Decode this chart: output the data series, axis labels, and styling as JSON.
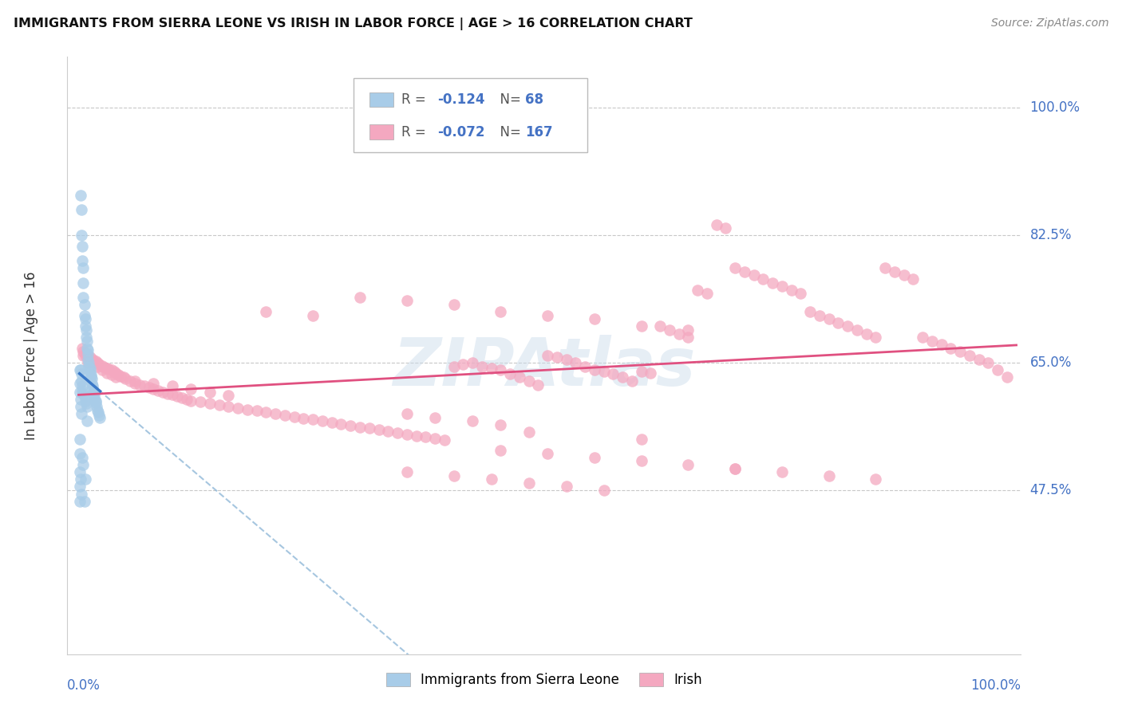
{
  "title": "IMMIGRANTS FROM SIERRA LEONE VS IRISH IN LABOR FORCE | AGE > 16 CORRELATION CHART",
  "source": "Source: ZipAtlas.com",
  "ylabel": "In Labor Force | Age > 16",
  "y_ticks": [
    0.475,
    0.65,
    0.825,
    1.0
  ],
  "y_tick_labels": [
    "47.5%",
    "65.0%",
    "82.5%",
    "100.0%"
  ],
  "legend_blue_R": "-0.124",
  "legend_blue_N": "68",
  "legend_pink_R": "-0.072",
  "legend_pink_N": "167",
  "blue_color": "#a8cce8",
  "pink_color": "#f4a8c0",
  "blue_line_color": "#3a78c8",
  "pink_line_color": "#e05080",
  "dashed_line_color": "#90b8d8",
  "watermark": "ZIPAtlas",
  "blue_scatter_x": [
    0.002,
    0.003,
    0.003,
    0.004,
    0.004,
    0.005,
    0.005,
    0.005,
    0.006,
    0.006,
    0.007,
    0.007,
    0.008,
    0.008,
    0.009,
    0.009,
    0.01,
    0.01,
    0.01,
    0.011,
    0.011,
    0.012,
    0.012,
    0.013,
    0.013,
    0.014,
    0.014,
    0.015,
    0.015,
    0.016,
    0.016,
    0.017,
    0.017,
    0.018,
    0.018,
    0.019,
    0.02,
    0.021,
    0.022,
    0.023,
    0.002,
    0.003,
    0.003,
    0.004,
    0.004,
    0.005,
    0.006,
    0.007,
    0.008,
    0.009,
    0.001,
    0.001,
    0.001,
    0.002,
    0.002,
    0.003,
    0.001,
    0.001,
    0.001,
    0.001,
    0.001,
    0.002,
    0.003,
    0.004,
    0.005,
    0.006,
    0.007,
    0.009
  ],
  "blue_scatter_y": [
    0.88,
    0.86,
    0.825,
    0.81,
    0.79,
    0.78,
    0.76,
    0.74,
    0.73,
    0.715,
    0.71,
    0.7,
    0.695,
    0.685,
    0.68,
    0.67,
    0.668,
    0.662,
    0.655,
    0.65,
    0.645,
    0.642,
    0.638,
    0.634,
    0.63,
    0.628,
    0.622,
    0.618,
    0.615,
    0.61,
    0.608,
    0.605,
    0.6,
    0.598,
    0.595,
    0.59,
    0.585,
    0.582,
    0.578,
    0.575,
    0.64,
    0.635,
    0.625,
    0.618,
    0.612,
    0.608,
    0.604,
    0.598,
    0.594,
    0.59,
    0.64,
    0.622,
    0.61,
    0.6,
    0.59,
    0.58,
    0.545,
    0.525,
    0.5,
    0.48,
    0.46,
    0.49,
    0.47,
    0.52,
    0.51,
    0.46,
    0.49,
    0.57
  ],
  "pink_scatter_x": [
    0.004,
    0.005,
    0.007,
    0.008,
    0.01,
    0.012,
    0.015,
    0.018,
    0.02,
    0.022,
    0.025,
    0.028,
    0.03,
    0.032,
    0.035,
    0.038,
    0.04,
    0.042,
    0.045,
    0.048,
    0.05,
    0.055,
    0.06,
    0.065,
    0.07,
    0.075,
    0.08,
    0.085,
    0.09,
    0.095,
    0.1,
    0.105,
    0.11,
    0.115,
    0.12,
    0.13,
    0.14,
    0.15,
    0.16,
    0.17,
    0.18,
    0.19,
    0.2,
    0.21,
    0.22,
    0.23,
    0.24,
    0.25,
    0.26,
    0.27,
    0.28,
    0.29,
    0.3,
    0.31,
    0.32,
    0.33,
    0.34,
    0.35,
    0.36,
    0.37,
    0.38,
    0.39,
    0.4,
    0.41,
    0.42,
    0.43,
    0.44,
    0.45,
    0.46,
    0.47,
    0.48,
    0.49,
    0.5,
    0.51,
    0.52,
    0.53,
    0.54,
    0.55,
    0.56,
    0.57,
    0.58,
    0.59,
    0.6,
    0.61,
    0.62,
    0.63,
    0.64,
    0.65,
    0.66,
    0.67,
    0.68,
    0.69,
    0.7,
    0.71,
    0.72,
    0.73,
    0.74,
    0.75,
    0.76,
    0.77,
    0.78,
    0.79,
    0.8,
    0.81,
    0.82,
    0.83,
    0.84,
    0.85,
    0.86,
    0.87,
    0.88,
    0.89,
    0.9,
    0.91,
    0.92,
    0.93,
    0.94,
    0.95,
    0.96,
    0.97,
    0.98,
    0.99,
    0.005,
    0.01,
    0.015,
    0.02,
    0.025,
    0.03,
    0.035,
    0.04,
    0.06,
    0.08,
    0.1,
    0.12,
    0.14,
    0.16,
    0.3,
    0.35,
    0.4,
    0.45,
    0.5,
    0.55,
    0.6,
    0.65,
    0.2,
    0.25,
    0.35,
    0.38,
    0.42,
    0.45,
    0.48,
    0.6,
    0.65,
    0.7,
    0.35,
    0.4,
    0.44,
    0.48,
    0.52,
    0.56,
    0.45,
    0.5,
    0.55,
    0.6,
    0.7,
    0.75,
    0.8,
    0.85
  ],
  "pink_scatter_y": [
    0.67,
    0.665,
    0.66,
    0.662,
    0.66,
    0.658,
    0.655,
    0.652,
    0.65,
    0.648,
    0.646,
    0.644,
    0.643,
    0.641,
    0.64,
    0.638,
    0.636,
    0.634,
    0.632,
    0.63,
    0.628,
    0.625,
    0.622,
    0.62,
    0.618,
    0.616,
    0.614,
    0.612,
    0.61,
    0.608,
    0.606,
    0.604,
    0.602,
    0.6,
    0.598,
    0.596,
    0.594,
    0.592,
    0.59,
    0.588,
    0.586,
    0.584,
    0.582,
    0.58,
    0.578,
    0.576,
    0.574,
    0.572,
    0.57,
    0.568,
    0.566,
    0.564,
    0.562,
    0.56,
    0.558,
    0.556,
    0.554,
    0.552,
    0.55,
    0.548,
    0.546,
    0.544,
    0.645,
    0.648,
    0.65,
    0.645,
    0.642,
    0.64,
    0.635,
    0.63,
    0.625,
    0.62,
    0.66,
    0.658,
    0.655,
    0.65,
    0.645,
    0.64,
    0.638,
    0.635,
    0.63,
    0.625,
    0.638,
    0.636,
    0.7,
    0.695,
    0.69,
    0.685,
    0.75,
    0.745,
    0.84,
    0.835,
    0.78,
    0.775,
    0.77,
    0.765,
    0.76,
    0.755,
    0.75,
    0.745,
    0.72,
    0.715,
    0.71,
    0.705,
    0.7,
    0.695,
    0.69,
    0.685,
    0.78,
    0.775,
    0.77,
    0.765,
    0.685,
    0.68,
    0.675,
    0.67,
    0.665,
    0.66,
    0.655,
    0.65,
    0.64,
    0.63,
    0.66,
    0.65,
    0.65,
    0.645,
    0.64,
    0.636,
    0.634,
    0.63,
    0.625,
    0.622,
    0.618,
    0.614,
    0.61,
    0.605,
    0.74,
    0.735,
    0.73,
    0.72,
    0.715,
    0.71,
    0.7,
    0.695,
    0.72,
    0.715,
    0.58,
    0.575,
    0.57,
    0.565,
    0.555,
    0.545,
    0.51,
    0.505,
    0.5,
    0.495,
    0.49,
    0.485,
    0.48,
    0.475,
    0.53,
    0.525,
    0.52,
    0.515,
    0.505,
    0.5,
    0.495,
    0.49
  ]
}
